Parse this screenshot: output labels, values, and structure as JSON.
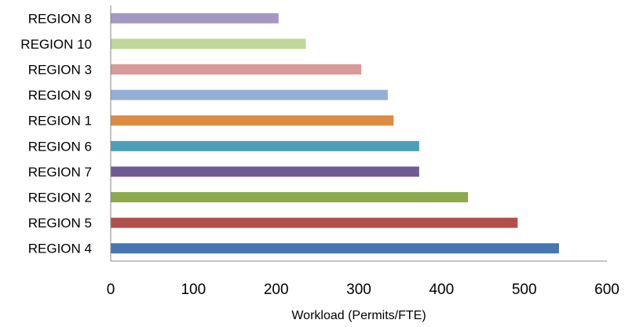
{
  "chart_data": {
    "type": "bar",
    "orientation": "horizontal",
    "categories": [
      "REGION 8",
      "REGION 10",
      "REGION 3",
      "REGION 9",
      "REGION 1",
      "REGION 6",
      "REGION 7",
      "REGION 2",
      "REGION 5",
      "REGION 4"
    ],
    "values": [
      203,
      236,
      303,
      335,
      342,
      373,
      373,
      432,
      492,
      542
    ],
    "colors": [
      "#a497c4",
      "#c0d69a",
      "#d99a98",
      "#95aed8",
      "#dd8a43",
      "#4aa0b6",
      "#6f5a95",
      "#8da94d",
      "#b44e4c",
      "#4675b0"
    ],
    "x_ticks": [
      "0",
      "100",
      "200",
      "300",
      "400",
      "500",
      "600"
    ],
    "xlim": [
      0,
      600
    ],
    "xlabel": "Workload (Permits/FTE)",
    "title": "",
    "legend": "none",
    "grid": false
  }
}
